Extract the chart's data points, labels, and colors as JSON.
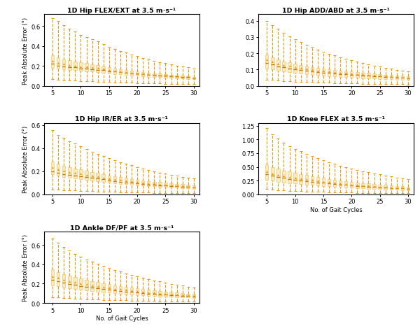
{
  "titles": [
    "1D Hip FLEX/EXT at 3.5 m·s⁻¹",
    "1D Hip ADD/ABD at 3.5 m·s⁻¹",
    "1D Hip IR/ER at 3.5 m·s⁻¹",
    "1D Knee FLEX at 3.5 m·s⁻¹",
    "1D Ankle DF/PF at 3.5 m·s⁻¹"
  ],
  "ylabel": "Peak Absolute Error (°)",
  "xlabel": "No. of Gait Cycles",
  "n_cycles": [
    5,
    6,
    7,
    8,
    9,
    10,
    11,
    12,
    13,
    14,
    15,
    16,
    17,
    18,
    19,
    20,
    21,
    22,
    23,
    24,
    25,
    26,
    27,
    28,
    29,
    30
  ],
  "panels": {
    "hip_flex": {
      "medians": [
        0.22,
        0.205,
        0.195,
        0.19,
        0.185,
        0.175,
        0.17,
        0.165,
        0.162,
        0.158,
        0.148,
        0.143,
        0.138,
        0.132,
        0.127,
        0.122,
        0.117,
        0.112,
        0.108,
        0.105,
        0.102,
        0.098,
        0.094,
        0.09,
        0.086,
        0.078
      ],
      "means": [
        0.25,
        0.232,
        0.22,
        0.21,
        0.204,
        0.198,
        0.192,
        0.185,
        0.178,
        0.172,
        0.16,
        0.153,
        0.146,
        0.14,
        0.133,
        0.127,
        0.121,
        0.116,
        0.111,
        0.108,
        0.104,
        0.1,
        0.095,
        0.092,
        0.088,
        0.08
      ],
      "q1": [
        0.182,
        0.172,
        0.166,
        0.162,
        0.157,
        0.152,
        0.147,
        0.142,
        0.138,
        0.133,
        0.124,
        0.119,
        0.114,
        0.109,
        0.105,
        0.1,
        0.096,
        0.092,
        0.088,
        0.086,
        0.083,
        0.08,
        0.076,
        0.073,
        0.07,
        0.065
      ],
      "q3": [
        0.31,
        0.285,
        0.268,
        0.256,
        0.246,
        0.236,
        0.228,
        0.218,
        0.208,
        0.198,
        0.186,
        0.176,
        0.169,
        0.161,
        0.153,
        0.146,
        0.139,
        0.132,
        0.126,
        0.121,
        0.115,
        0.11,
        0.104,
        0.1,
        0.096,
        0.089
      ],
      "whisker_low": [
        0.065,
        0.06,
        0.057,
        0.054,
        0.052,
        0.049,
        0.047,
        0.044,
        0.042,
        0.04,
        0.037,
        0.035,
        0.033,
        0.031,
        0.029,
        0.027,
        0.026,
        0.025,
        0.023,
        0.022,
        0.021,
        0.02,
        0.019,
        0.018,
        0.017,
        0.016
      ],
      "whisker_high": [
        0.68,
        0.65,
        0.61,
        0.575,
        0.545,
        0.515,
        0.492,
        0.468,
        0.445,
        0.422,
        0.395,
        0.372,
        0.352,
        0.333,
        0.315,
        0.298,
        0.282,
        0.267,
        0.253,
        0.24,
        0.228,
        0.216,
        0.205,
        0.194,
        0.185,
        0.175
      ],
      "ylim": [
        0.0,
        0.72
      ]
    },
    "hip_add": {
      "medians": [
        0.14,
        0.13,
        0.12,
        0.113,
        0.107,
        0.102,
        0.097,
        0.092,
        0.088,
        0.084,
        0.081,
        0.078,
        0.075,
        0.073,
        0.07,
        0.068,
        0.066,
        0.064,
        0.062,
        0.06,
        0.058,
        0.056,
        0.054,
        0.052,
        0.05,
        0.047
      ],
      "means": [
        0.162,
        0.15,
        0.138,
        0.129,
        0.122,
        0.116,
        0.11,
        0.105,
        0.1,
        0.095,
        0.091,
        0.087,
        0.084,
        0.081,
        0.078,
        0.075,
        0.073,
        0.071,
        0.068,
        0.066,
        0.064,
        0.062,
        0.06,
        0.058,
        0.056,
        0.052
      ],
      "q1": [
        0.108,
        0.1,
        0.094,
        0.088,
        0.083,
        0.079,
        0.075,
        0.071,
        0.068,
        0.065,
        0.062,
        0.059,
        0.057,
        0.055,
        0.053,
        0.051,
        0.049,
        0.047,
        0.046,
        0.044,
        0.043,
        0.041,
        0.04,
        0.038,
        0.037,
        0.035
      ],
      "q3": [
        0.19,
        0.175,
        0.162,
        0.151,
        0.143,
        0.136,
        0.128,
        0.121,
        0.116,
        0.11,
        0.106,
        0.101,
        0.097,
        0.094,
        0.09,
        0.087,
        0.084,
        0.081,
        0.078,
        0.075,
        0.072,
        0.069,
        0.066,
        0.064,
        0.061,
        0.058
      ],
      "whisker_low": [
        0.038,
        0.035,
        0.032,
        0.03,
        0.028,
        0.026,
        0.024,
        0.023,
        0.022,
        0.02,
        0.019,
        0.018,
        0.017,
        0.016,
        0.015,
        0.015,
        0.014,
        0.013,
        0.013,
        0.012,
        0.012,
        0.011,
        0.011,
        0.01,
        0.01,
        0.009
      ],
      "whisker_high": [
        0.4,
        0.375,
        0.35,
        0.325,
        0.305,
        0.285,
        0.268,
        0.253,
        0.238,
        0.224,
        0.21,
        0.198,
        0.187,
        0.176,
        0.166,
        0.156,
        0.147,
        0.139,
        0.131,
        0.124,
        0.117,
        0.11,
        0.104,
        0.098,
        0.093,
        0.087
      ],
      "ylim": [
        0.0,
        0.44
      ]
    },
    "hip_ir": {
      "medians": [
        0.2,
        0.188,
        0.178,
        0.17,
        0.163,
        0.157,
        0.15,
        0.143,
        0.136,
        0.13,
        0.122,
        0.116,
        0.11,
        0.105,
        0.1,
        0.095,
        0.091,
        0.087,
        0.083,
        0.08,
        0.077,
        0.073,
        0.07,
        0.067,
        0.064,
        0.06
      ],
      "means": [
        0.235,
        0.218,
        0.206,
        0.196,
        0.187,
        0.179,
        0.17,
        0.162,
        0.154,
        0.147,
        0.138,
        0.131,
        0.125,
        0.119,
        0.113,
        0.108,
        0.103,
        0.098,
        0.094,
        0.09,
        0.086,
        0.082,
        0.079,
        0.075,
        0.072,
        0.068
      ],
      "q1": [
        0.172,
        0.16,
        0.151,
        0.144,
        0.138,
        0.132,
        0.126,
        0.12,
        0.114,
        0.109,
        0.102,
        0.097,
        0.092,
        0.088,
        0.084,
        0.08,
        0.076,
        0.073,
        0.07,
        0.067,
        0.064,
        0.061,
        0.058,
        0.056,
        0.054,
        0.05
      ],
      "q3": [
        0.286,
        0.264,
        0.249,
        0.236,
        0.225,
        0.216,
        0.206,
        0.196,
        0.186,
        0.176,
        0.165,
        0.157,
        0.149,
        0.142,
        0.135,
        0.129,
        0.123,
        0.117,
        0.111,
        0.106,
        0.101,
        0.097,
        0.092,
        0.088,
        0.084,
        0.079
      ],
      "whisker_low": [
        0.042,
        0.039,
        0.037,
        0.035,
        0.033,
        0.031,
        0.029,
        0.027,
        0.026,
        0.024,
        0.023,
        0.021,
        0.02,
        0.019,
        0.018,
        0.017,
        0.016,
        0.015,
        0.014,
        0.013,
        0.013,
        0.012,
        0.011,
        0.011,
        0.01,
        0.01
      ],
      "whisker_high": [
        0.555,
        0.515,
        0.49,
        0.463,
        0.44,
        0.415,
        0.393,
        0.372,
        0.353,
        0.334,
        0.314,
        0.297,
        0.281,
        0.266,
        0.251,
        0.237,
        0.224,
        0.212,
        0.201,
        0.19,
        0.18,
        0.17,
        0.161,
        0.153,
        0.145,
        0.137
      ],
      "ylim": [
        0.0,
        0.62
      ]
    },
    "knee_flex": {
      "medians": [
        0.37,
        0.34,
        0.318,
        0.3,
        0.284,
        0.27,
        0.256,
        0.243,
        0.231,
        0.22,
        0.208,
        0.197,
        0.188,
        0.179,
        0.17,
        0.162,
        0.155,
        0.148,
        0.141,
        0.135,
        0.129,
        0.124,
        0.118,
        0.113,
        0.108,
        0.102
      ],
      "means": [
        0.42,
        0.386,
        0.36,
        0.338,
        0.32,
        0.304,
        0.288,
        0.273,
        0.26,
        0.247,
        0.233,
        0.221,
        0.21,
        0.199,
        0.19,
        0.181,
        0.172,
        0.164,
        0.157,
        0.15,
        0.143,
        0.137,
        0.131,
        0.125,
        0.12,
        0.113
      ],
      "q1": [
        0.268,
        0.248,
        0.232,
        0.219,
        0.207,
        0.197,
        0.187,
        0.178,
        0.17,
        0.162,
        0.153,
        0.145,
        0.138,
        0.132,
        0.126,
        0.12,
        0.115,
        0.11,
        0.105,
        0.1,
        0.096,
        0.092,
        0.088,
        0.084,
        0.08,
        0.076
      ],
      "q3": [
        0.54,
        0.496,
        0.464,
        0.435,
        0.412,
        0.39,
        0.37,
        0.351,
        0.333,
        0.316,
        0.297,
        0.281,
        0.267,
        0.253,
        0.24,
        0.228,
        0.217,
        0.207,
        0.197,
        0.188,
        0.179,
        0.171,
        0.163,
        0.155,
        0.148,
        0.14
      ],
      "whisker_low": [
        0.095,
        0.086,
        0.079,
        0.073,
        0.067,
        0.062,
        0.058,
        0.054,
        0.05,
        0.047,
        0.043,
        0.04,
        0.038,
        0.035,
        0.033,
        0.031,
        0.029,
        0.027,
        0.026,
        0.024,
        0.023,
        0.022,
        0.021,
        0.02,
        0.019,
        0.018
      ],
      "whisker_high": [
        1.21,
        1.09,
        1.01,
        0.94,
        0.882,
        0.828,
        0.781,
        0.738,
        0.698,
        0.661,
        0.622,
        0.588,
        0.556,
        0.526,
        0.498,
        0.471,
        0.446,
        0.423,
        0.401,
        0.381,
        0.361,
        0.343,
        0.325,
        0.309,
        0.293,
        0.278
      ],
      "ylim": [
        0.0,
        1.3
      ]
    },
    "ankle_df": {
      "medians": [
        0.24,
        0.222,
        0.208,
        0.196,
        0.186,
        0.177,
        0.168,
        0.16,
        0.152,
        0.145,
        0.137,
        0.131,
        0.124,
        0.118,
        0.113,
        0.108,
        0.103,
        0.098,
        0.094,
        0.09,
        0.086,
        0.082,
        0.078,
        0.075,
        0.072,
        0.068
      ],
      "means": [
        0.278,
        0.258,
        0.241,
        0.227,
        0.215,
        0.204,
        0.193,
        0.184,
        0.175,
        0.166,
        0.157,
        0.149,
        0.142,
        0.135,
        0.128,
        0.122,
        0.116,
        0.111,
        0.106,
        0.101,
        0.097,
        0.093,
        0.089,
        0.085,
        0.081,
        0.077
      ],
      "q1": [
        0.185,
        0.171,
        0.16,
        0.151,
        0.143,
        0.136,
        0.129,
        0.123,
        0.117,
        0.111,
        0.106,
        0.1,
        0.095,
        0.091,
        0.087,
        0.082,
        0.078,
        0.075,
        0.072,
        0.069,
        0.066,
        0.063,
        0.06,
        0.057,
        0.055,
        0.052
      ],
      "q3": [
        0.348,
        0.32,
        0.299,
        0.281,
        0.265,
        0.251,
        0.238,
        0.226,
        0.215,
        0.204,
        0.193,
        0.183,
        0.174,
        0.165,
        0.157,
        0.15,
        0.142,
        0.135,
        0.129,
        0.123,
        0.117,
        0.112,
        0.107,
        0.102,
        0.097,
        0.092
      ],
      "whisker_low": [
        0.062,
        0.057,
        0.052,
        0.048,
        0.045,
        0.042,
        0.039,
        0.037,
        0.035,
        0.033,
        0.031,
        0.029,
        0.027,
        0.026,
        0.024,
        0.023,
        0.021,
        0.02,
        0.019,
        0.018,
        0.017,
        0.016,
        0.015,
        0.015,
        0.014,
        0.013
      ],
      "whisker_high": [
        0.67,
        0.622,
        0.58,
        0.542,
        0.51,
        0.48,
        0.453,
        0.428,
        0.405,
        0.383,
        0.362,
        0.342,
        0.324,
        0.307,
        0.291,
        0.275,
        0.261,
        0.247,
        0.234,
        0.222,
        0.21,
        0.199,
        0.189,
        0.179,
        0.17,
        0.161
      ],
      "ylim": [
        0.0,
        0.74
      ]
    }
  },
  "box_color": "#E8980A",
  "median_color": "#C87800",
  "mean_color": "#E8980A",
  "whisker_color": "#E8980A",
  "face_color": "#F5C842",
  "face_alpha": 0.35,
  "background_color": "#FFFFFF"
}
